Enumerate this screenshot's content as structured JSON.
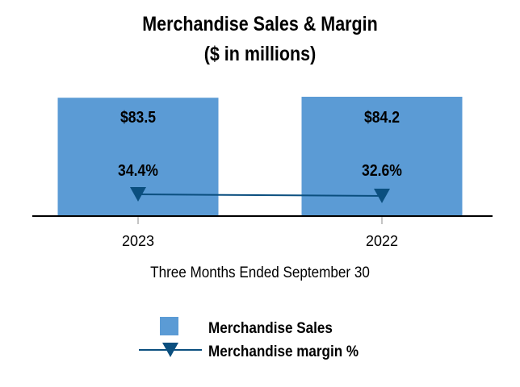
{
  "chart_data": {
    "type": "bar",
    "title": "Merchandise Sales & Margin",
    "subtitle": "($ in millions)",
    "xlabel": "Three Months Ended September 30",
    "categories": [
      "2023",
      "2022"
    ],
    "series": [
      {
        "name": "Merchandise Sales",
        "type": "bar",
        "values": [
          83.5,
          84.2
        ],
        "labels": [
          "$83.5",
          "$84.2"
        ],
        "color": "#5b9bd5"
      },
      {
        "name": "Merchandise margin %",
        "type": "line",
        "values": [
          34.4,
          32.6
        ],
        "labels": [
          "34.4%",
          "32.6%"
        ],
        "color": "#0b4f7f",
        "marker": "triangle-down"
      }
    ],
    "grid": false,
    "legend_position": "bottom"
  }
}
